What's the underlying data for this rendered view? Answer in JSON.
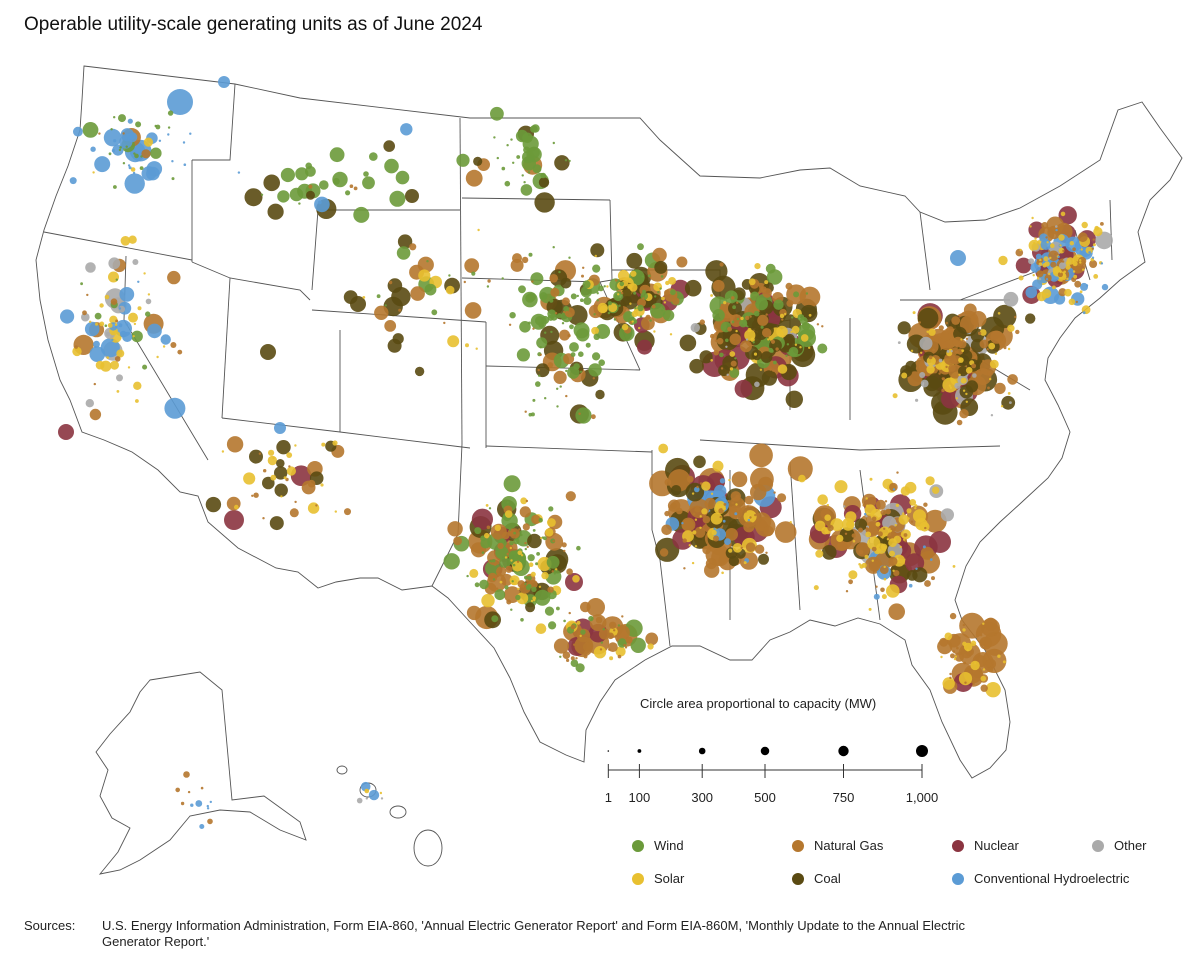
{
  "title": "Operable utility-scale generating units as of June 2024",
  "scale": {
    "title": "Circle area proportional to capacity (MW)",
    "values": [
      1,
      100,
      300,
      500,
      750,
      1000
    ],
    "labels": [
      "1",
      "100",
      "300",
      "500",
      "750",
      "1,000"
    ]
  },
  "legend": [
    {
      "key": "wind",
      "label": "Wind",
      "color": "#6b9a3a"
    },
    {
      "key": "gas",
      "label": "Natural Gas",
      "color": "#b5772e"
    },
    {
      "key": "nuclear",
      "label": "Nuclear",
      "color": "#8b3440"
    },
    {
      "key": "other",
      "label": "Other",
      "color": "#aaaaaa"
    },
    {
      "key": "solar",
      "label": "Solar",
      "color": "#e8c030"
    },
    {
      "key": "coal",
      "label": "Coal",
      "color": "#5a4a12"
    },
    {
      "key": "hydro",
      "label": "Conventional Hydroelectric",
      "color": "#5b9bd5"
    }
  ],
  "sources": {
    "label": "Sources:",
    "text": "U.S. Energy Information Administration, Form EIA-860, 'Annual Electric Generator Report' and Form EIA-860M, 'Monthly Update to the Annual Electric Generator Report.'"
  }
}
